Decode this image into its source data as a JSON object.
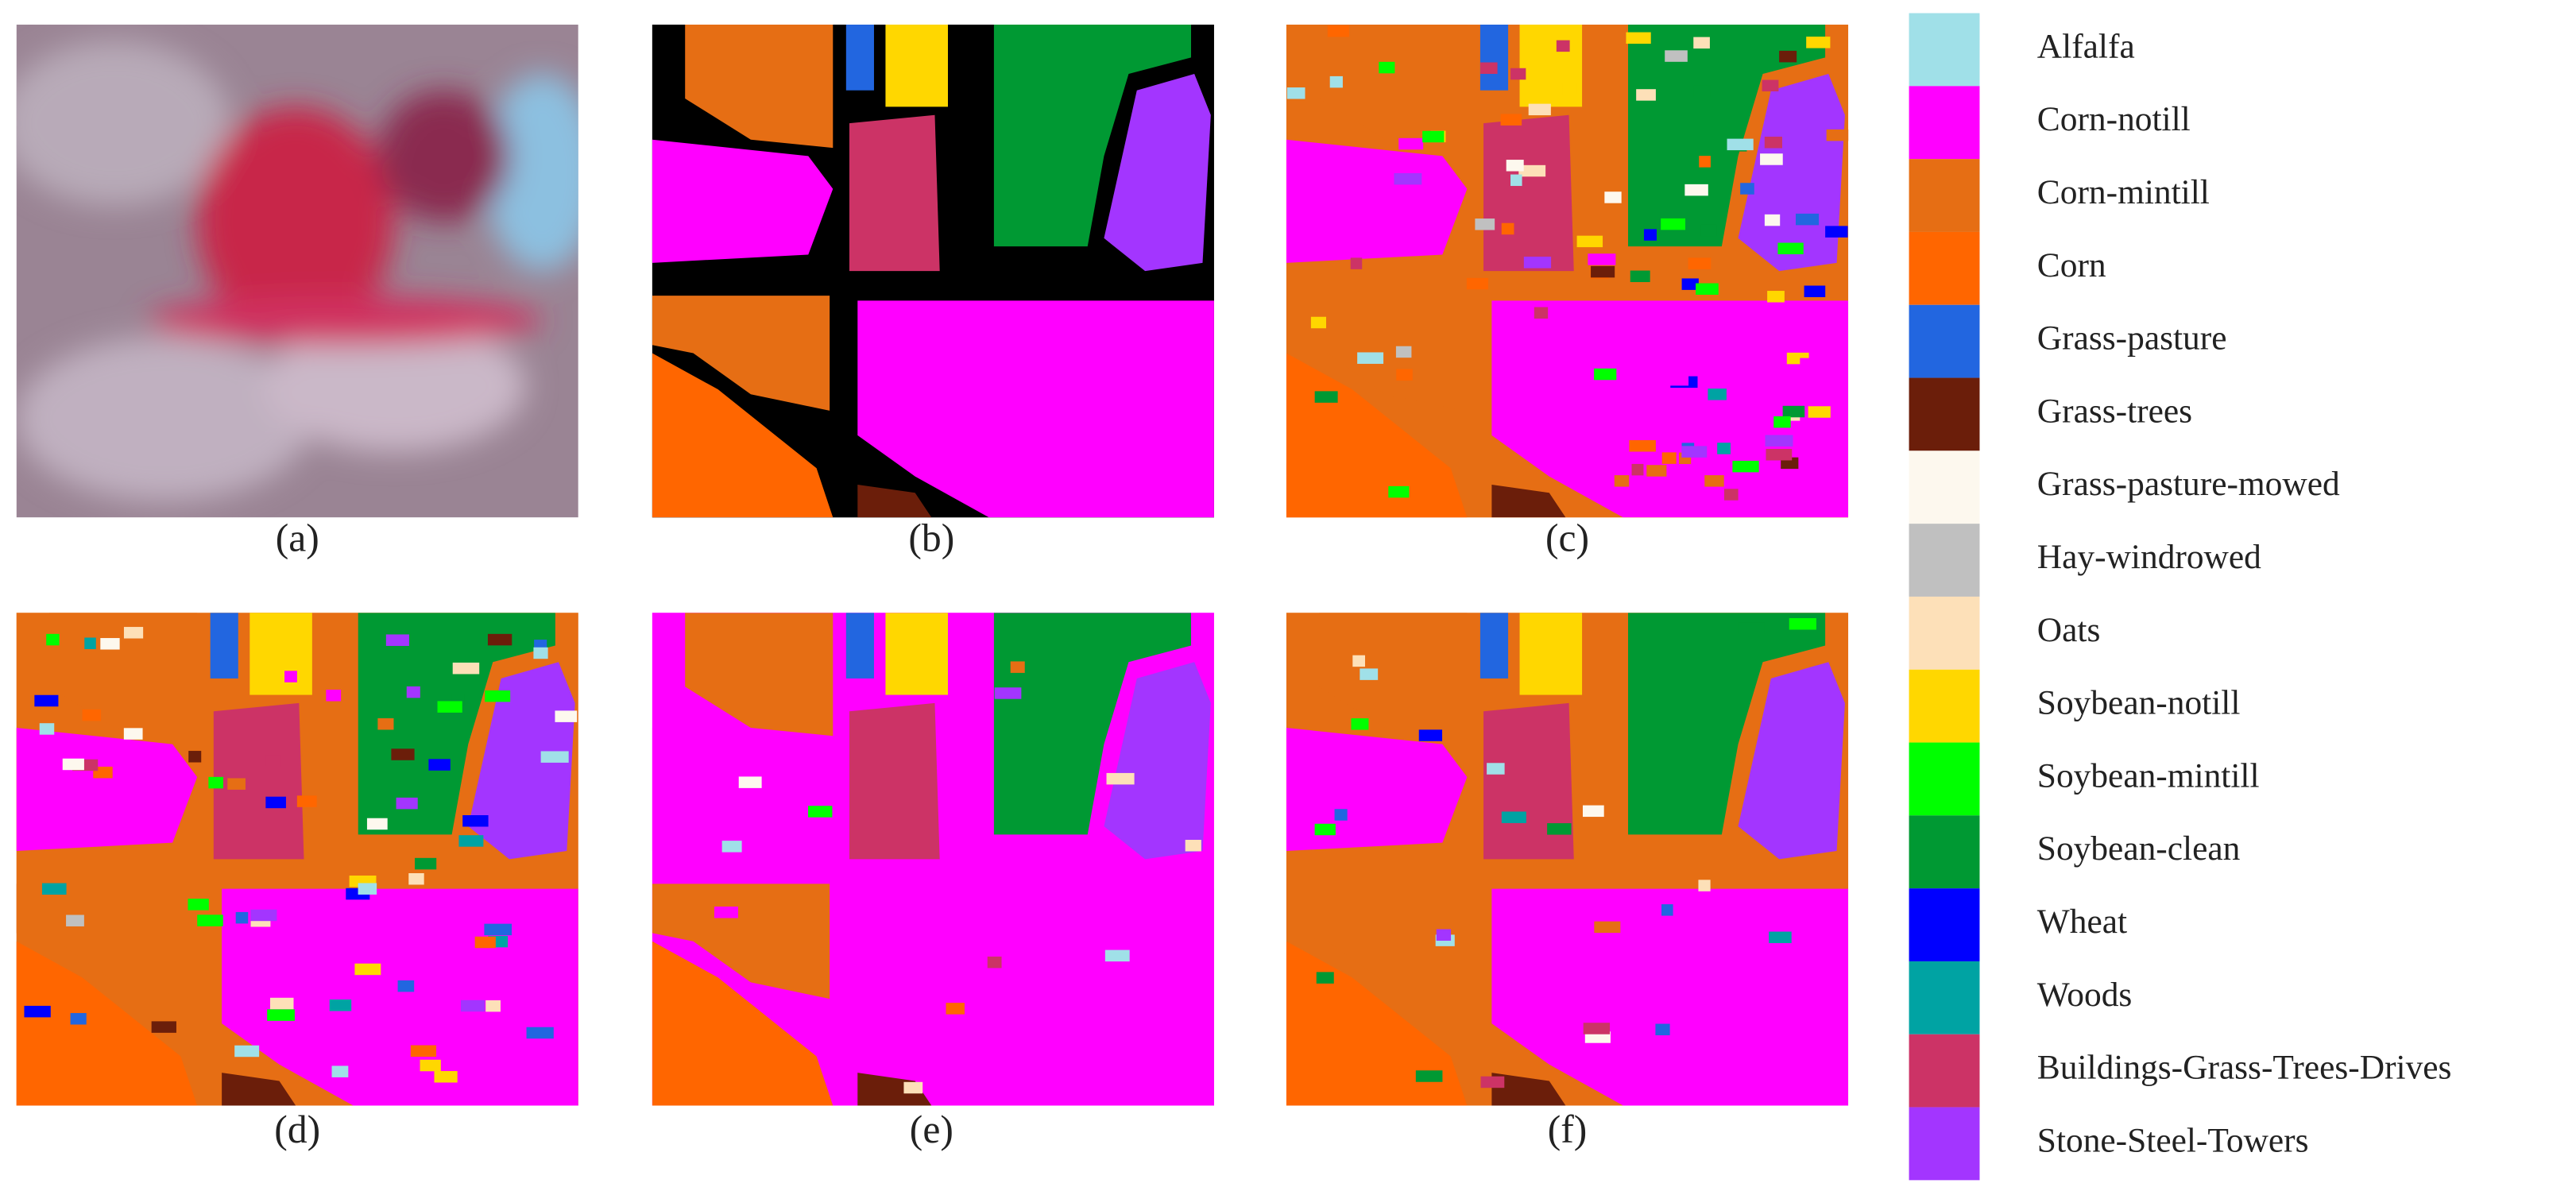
{
  "panels": {
    "labels": [
      "(a)",
      "(b)",
      "(c)",
      "(d)",
      "(e)",
      "(f)"
    ]
  },
  "legend": {
    "items": [
      {
        "name": "Alfalfa",
        "color": "#a0e0e8"
      },
      {
        "name": "Corn-notill",
        "color": "#ff00ff"
      },
      {
        "name": "Corn-mintill",
        "color": "#e66e14"
      },
      {
        "name": "Corn",
        "color": "#ff6600"
      },
      {
        "name": "Grass-pasture",
        "color": "#2266e0"
      },
      {
        "name": "Grass-trees",
        "color": "#6b1e0a"
      },
      {
        "name": "Grass-pasture-mowed",
        "color": "#fdf8ee"
      },
      {
        "name": "Hay-windrowed",
        "color": "#c0c0c0"
      },
      {
        "name": "Oats",
        "color": "#fde0b8"
      },
      {
        "name": "Soybean-notill",
        "color": "#ffd700"
      },
      {
        "name": "Soybean-mintill",
        "color": "#00ff00"
      },
      {
        "name": "Soybean-clean",
        "color": "#009933"
      },
      {
        "name": "Wheat",
        "color": "#0000ff"
      },
      {
        "name": "Woods",
        "color": "#00a3a3"
      },
      {
        "name": "Buildings-Grass-Trees-Drives",
        "color": "#cc3366"
      },
      {
        "name": "Stone-Steel-Towers",
        "color": "#a335ff"
      }
    ]
  }
}
